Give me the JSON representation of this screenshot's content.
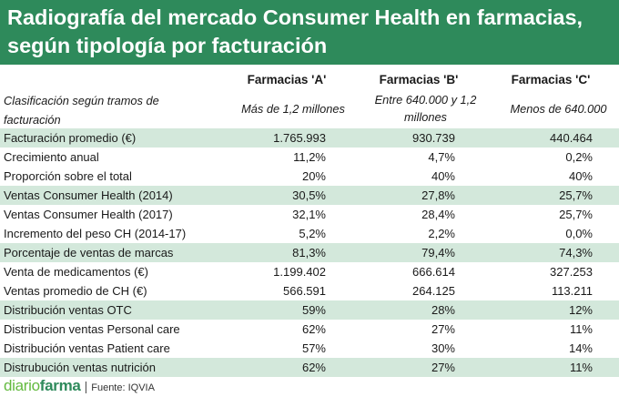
{
  "title": {
    "line1": "Radiografía del mercado Consumer Health en farmacias,",
    "line2": "según tipología por facturación"
  },
  "columns": [
    "Farmacias 'A'",
    "Farmacias 'B'",
    "Farmacias 'C'"
  ],
  "subheader": {
    "label_line1": "Clasificación según tramos de",
    "label_line2": "facturación",
    "a": "Más de 1,2 millones",
    "b_line1": "Entre 640.000 y 1,2",
    "b_line2": "millones",
    "c": "Menos de 640.000"
  },
  "rows": [
    {
      "label": "Facturación promedio (€)",
      "a": "1.765.993",
      "b": "930.739",
      "c": "440.464"
    },
    {
      "label": "Crecimiento anual",
      "a": "11,2%",
      "b": "4,7%",
      "c": "0,2%"
    },
    {
      "label": "Proporción sobre el total",
      "a": "20%",
      "b": "40%",
      "c": "40%"
    },
    {
      "label": "Ventas Consumer Health (2014)",
      "a": "30,5%",
      "b": "27,8%",
      "c": "25,7%"
    },
    {
      "label": "Ventas Consumer Health (2017)",
      "a": "32,1%",
      "b": "28,4%",
      "c": "25,7%"
    },
    {
      "label": "Incremento del peso CH (2014-17)",
      "a": "5,2%",
      "b": "2,2%",
      "c": "0,0%"
    },
    {
      "label": "Porcentaje de ventas de marcas",
      "a": "81,3%",
      "b": "79,4%",
      "c": "74,3%"
    },
    {
      "label": "Venta de medicamentos (€)",
      "a": "1.199.402",
      "b": "666.614",
      "c": "327.253"
    },
    {
      "label": "Ventas promedio de CH (€)",
      "a": "566.591",
      "b": "264.125",
      "c": "113.211"
    },
    {
      "label": "Distribución ventas OTC",
      "a": "59%",
      "b": "28%",
      "c": "12%"
    },
    {
      "label": "Distribucion ventas Personal care",
      "a": "62%",
      "b": "27%",
      "c": "11%"
    },
    {
      "label": "Distribución ventas Patient care",
      "a": "57%",
      "b": "30%",
      "c": "14%"
    },
    {
      "label": "Distrubución ventas nutrición",
      "a": "62%",
      "b": "27%",
      "c": "11%"
    }
  ],
  "footer": {
    "logo_light": "diario",
    "logo_bold": "farma",
    "separator": "|",
    "source": "Fuente:  IQVIA"
  },
  "colors": {
    "title_bg": "#2e8a5b",
    "row_shade": "#d3e8db",
    "logo_light": "#63ba3f",
    "logo_bold": "#2e8a5b"
  }
}
